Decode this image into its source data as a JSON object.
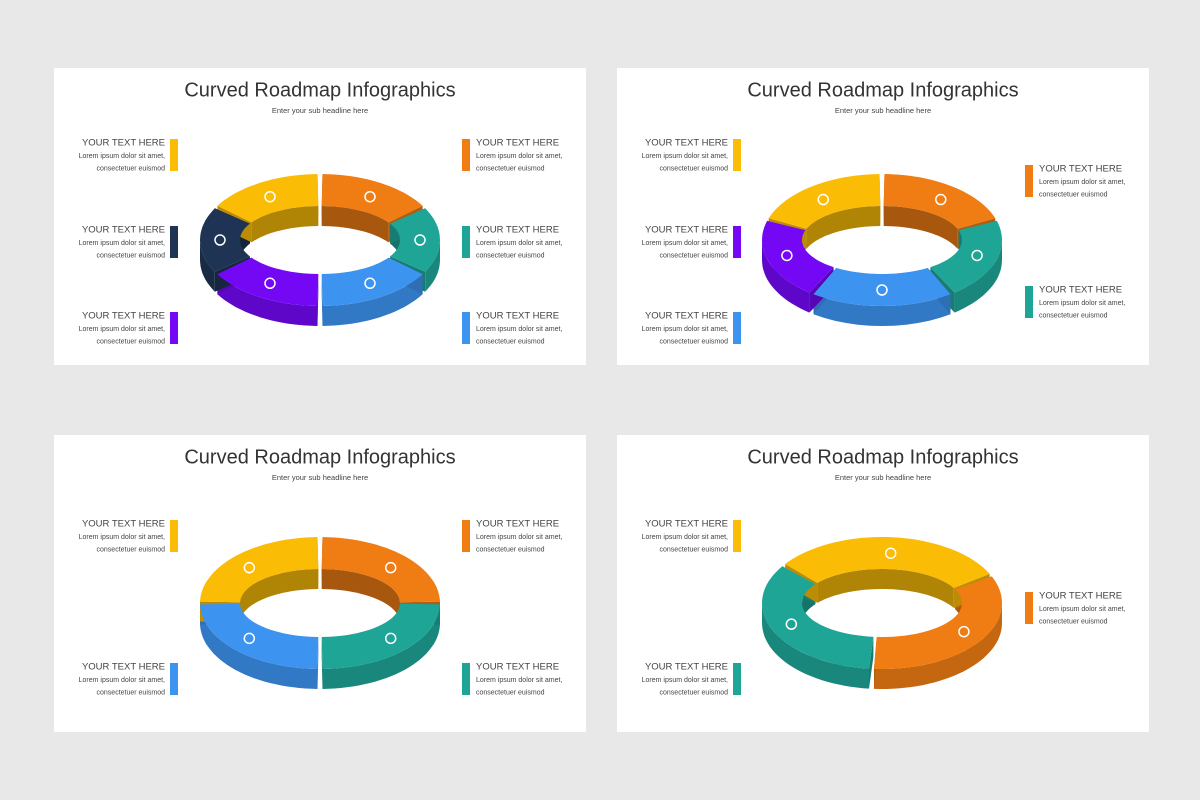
{
  "slides": [
    {
      "title": "Curved Roadmap Infographics",
      "subtitle": "Enter your sub headline here",
      "left": [
        {
          "heading": "YOUR TEXT HERE",
          "lines": [
            "Lorem ipsum dolor sit amet,",
            "consectetuer euismod"
          ],
          "color": "#fbbc05"
        },
        {
          "heading": "YOUR TEXT HERE",
          "lines": [
            "Lorem ipsum dolor sit amet,",
            "consectetuer euismod"
          ],
          "color": "#1f3354"
        },
        {
          "heading": "YOUR TEXT HERE",
          "lines": [
            "Lorem ipsum dolor sit amet,",
            "consectetuer euismod"
          ],
          "color": "#7408f4"
        }
      ],
      "right": [
        {
          "heading": "YOUR TEXT HERE",
          "lines": [
            "Lorem ipsum dolor sit amet,",
            "consectetuer euismod"
          ],
          "color": "#f07c14"
        },
        {
          "heading": "YOUR TEXT HERE",
          "lines": [
            "Lorem ipsum dolor sit amet,",
            "consectetuer euismod"
          ],
          "color": "#1fa596"
        },
        {
          "heading": "YOUR TEXT HERE",
          "lines": [
            "Lorem ipsum dolor sit amet,",
            "consectetuer euismod"
          ],
          "color": "#3d94f0"
        }
      ]
    },
    {
      "title": "Curved Roadmap Infographics",
      "subtitle": "Enter your sub headline here",
      "left": [
        {
          "heading": "YOUR TEXT HERE",
          "lines": [
            "Lorem ipsum dolor sit amet,",
            "consectetuer euismod"
          ],
          "color": "#fbbc05"
        },
        {
          "heading": "YOUR TEXT HERE",
          "lines": [
            "Lorem ipsum dolor sit amet,",
            "consectetuer euismod"
          ],
          "color": "#7408f4"
        },
        {
          "heading": "YOUR TEXT HERE",
          "lines": [
            "Lorem ipsum dolor sit amet,",
            "consectetuer euismod"
          ],
          "color": "#3d94f0"
        }
      ],
      "right": [
        {
          "heading": "YOUR TEXT HERE",
          "lines": [
            "Lorem ipsum dolor sit amet,",
            "consectetuer euismod"
          ],
          "color": "#f07c14"
        },
        {
          "heading": "YOUR TEXT HERE",
          "lines": [
            "Lorem ipsum dolor sit amet,",
            "consectetuer euismod"
          ],
          "color": "#1fa596"
        }
      ]
    },
    {
      "title": "Curved Roadmap Infographics",
      "subtitle": "Enter your sub headline here",
      "left": [
        {
          "heading": "YOUR TEXT HERE",
          "lines": [
            "Lorem ipsum dolor sit amet,",
            "consectetuer euismod"
          ],
          "color": "#fbbc05"
        },
        {
          "heading": "YOUR TEXT HERE",
          "lines": [
            "Lorem ipsum dolor sit amet,",
            "consectetuer euismod"
          ],
          "color": "#3d94f0"
        }
      ],
      "right": [
        {
          "heading": "YOUR TEXT HERE",
          "lines": [
            "Lorem ipsum dolor sit amet,",
            "consectetuer euismod"
          ],
          "color": "#f07c14"
        },
        {
          "heading": "YOUR TEXT HERE",
          "lines": [
            "Lorem ipsum dolor sit amet,",
            "consectetuer euismod"
          ],
          "color": "#1fa596"
        }
      ]
    },
    {
      "title": "Curved Roadmap Infographics",
      "subtitle": "Enter your sub headline here",
      "left": [
        {
          "heading": "YOUR TEXT HERE",
          "lines": [
            "Lorem ipsum dolor sit amet,",
            "consectetuer euismod"
          ],
          "color": "#fbbc05"
        },
        {
          "heading": "YOUR TEXT HERE",
          "lines": [
            "Lorem ipsum dolor sit amet,",
            "consectetuer euismod"
          ],
          "color": "#1fa596"
        }
      ],
      "right": [
        {
          "heading": "YOUR TEXT HERE",
          "lines": [
            "Lorem ipsum dolor sit amet,",
            "consectetuer euismod"
          ],
          "color": "#f07c14"
        }
      ]
    }
  ]
}
